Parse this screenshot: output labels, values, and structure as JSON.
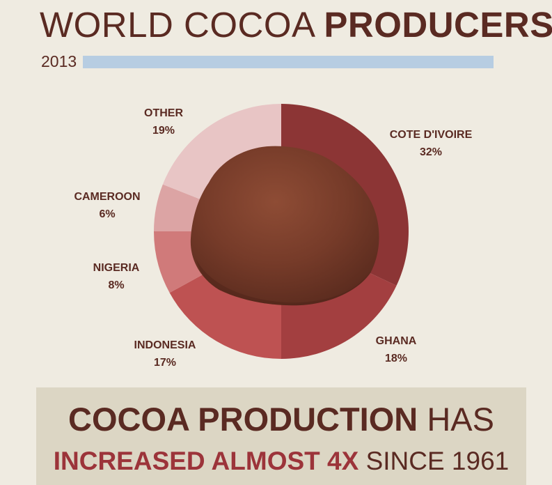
{
  "header": {
    "title_light": "WORLD COCOA",
    "title_bold": "PRODUCERS",
    "year": "2013"
  },
  "colors": {
    "background": "#efebe1",
    "text": "#5a2a22",
    "year_bar": "#b7cde2",
    "banner": "#dcd6c4",
    "highlight": "#9c343a",
    "cocoa_powder": "#7a3e2b"
  },
  "chart_data": {
    "type": "pie",
    "title": "WORLD COCOA PRODUCERS",
    "subtitle": "2013",
    "unit": "%",
    "slices": [
      {
        "label": "COTE D'IVOIRE",
        "value": 32,
        "display": "32%",
        "color": "#8c3535"
      },
      {
        "label": "GHANA",
        "value": 18,
        "display": "18%",
        "color": "#a33f40"
      },
      {
        "label": "INDONESIA",
        "value": 17,
        "display": "17%",
        "color": "#be5252"
      },
      {
        "label": "NIGERIA",
        "value": 8,
        "display": "8%",
        "color": "#d07a7a"
      },
      {
        "label": "CAMEROON",
        "value": 6,
        "display": "6%",
        "color": "#dca4a4"
      },
      {
        "label": "OTHER",
        "value": 19,
        "display": "19%",
        "color": "#e8c5c5"
      }
    ]
  },
  "banner": {
    "line1_bold": "COCOA PRODUCTION",
    "line1_rest": "HAS",
    "line2_bold": "INCREASED ALMOST 4X",
    "line2_rest": "SINCE 1961"
  }
}
